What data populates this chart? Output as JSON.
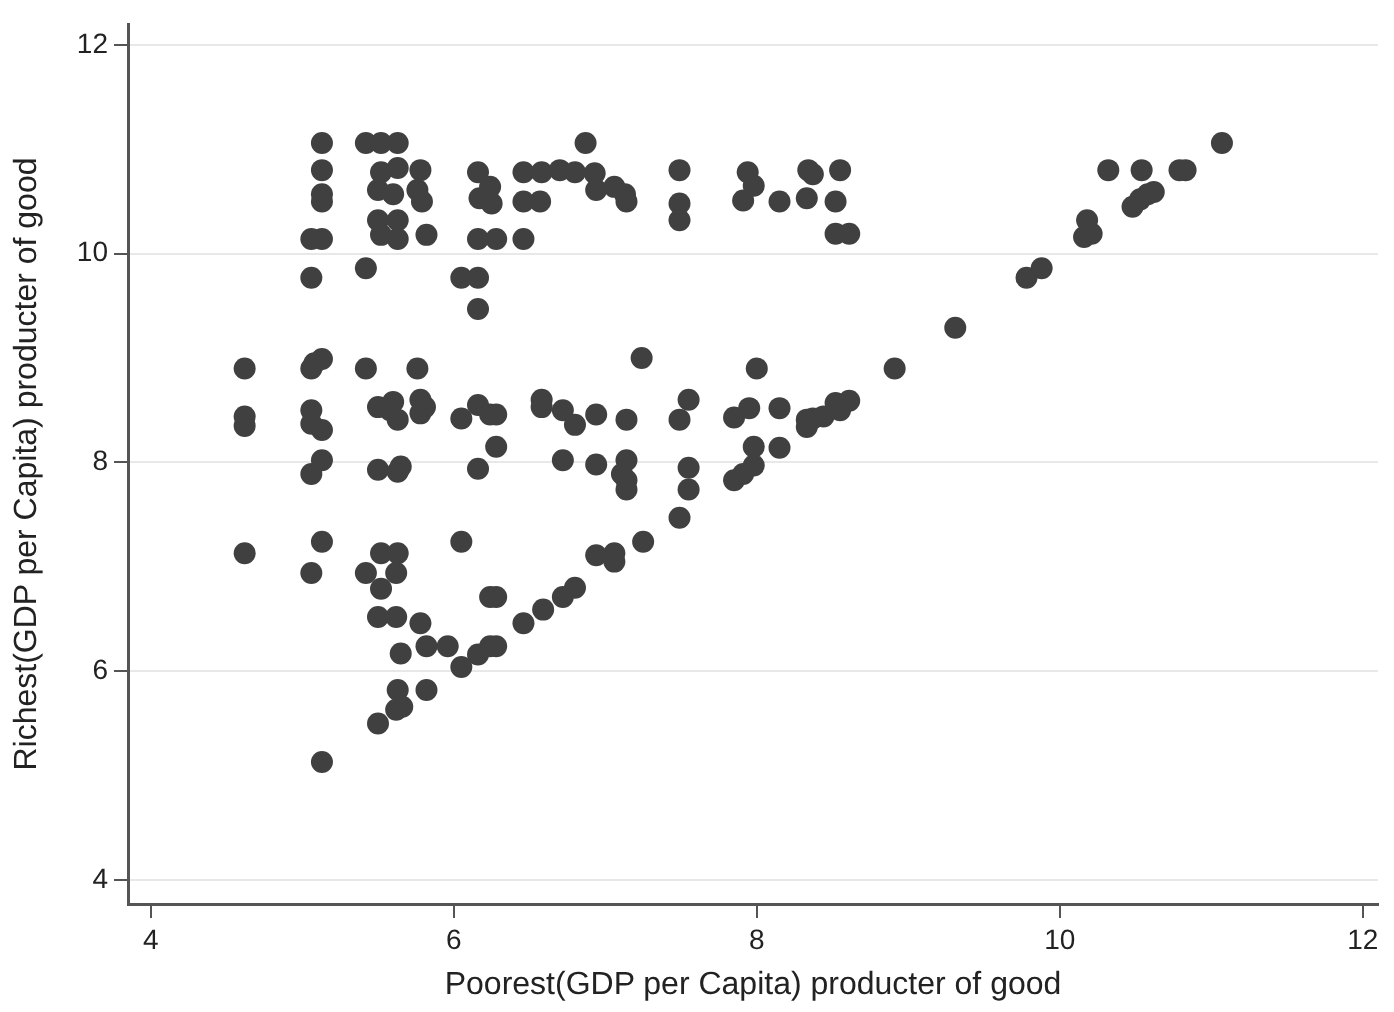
{
  "chart_data": {
    "type": "scatter",
    "xlabel": "Poorest(GDP per Capita) producter of good",
    "ylabel": "Richest(GDP per Capita) producter of good",
    "color": "#404040",
    "marker": "circle",
    "grid": "y",
    "xlim": [
      3.85,
      12.1
    ],
    "ylim": [
      3.77,
      12.2
    ],
    "xticks": [
      4,
      6,
      8,
      10,
      12
    ],
    "yticks": [
      4,
      6,
      8,
      10,
      12
    ],
    "x": [
      4.62,
      4.62,
      4.62,
      4.62,
      5.06,
      5.06,
      5.06,
      5.06,
      5.06,
      5.06,
      5.06,
      5.08,
      5.13,
      5.13,
      5.13,
      5.13,
      5.13,
      5.13,
      5.13,
      5.13,
      5.13,
      5.13,
      5.42,
      5.42,
      5.42,
      5.42,
      5.52,
      5.63,
      5.52,
      5.63,
      5.78,
      5.5,
      5.6,
      5.76,
      5.79,
      5.5,
      5.63,
      5.52,
      5.63,
      5.82,
      5.76,
      5.5,
      5.6,
      5.63,
      5.58,
      5.78,
      5.78,
      5.81,
      5.5,
      5.63,
      5.65,
      5.52,
      5.63,
      5.62,
      5.52,
      5.5,
      5.62,
      5.78,
      5.65,
      5.82,
      5.96,
      5.63,
      5.82,
      5.62,
      5.66,
      5.5,
      6.05,
      6.16,
      6.24,
      6.28,
      6.05,
      6.24,
      6.28,
      6.05,
      6.16,
      6.24,
      6.28,
      6.28,
      6.16,
      6.16,
      6.24,
      6.17,
      6.25,
      6.16,
      6.28,
      6.05,
      6.16,
      6.16,
      6.46,
      6.58,
      6.7,
      6.8,
      6.87,
      6.93,
      6.94,
      7.06,
      7.13,
      7.14,
      6.46,
      6.57,
      6.46,
      7.49,
      7.49,
      7.49,
      7.94,
      7.91,
      7.98,
      8.34,
      8.37,
      8.55,
      8.15,
      8.33,
      8.52,
      8.52,
      8.61,
      10.32,
      10.54,
      10.79,
      10.83,
      11.07,
      10.48,
      10.53,
      10.58,
      10.62,
      10.18,
      10.16,
      10.21,
      9.78,
      9.88,
      9.31,
      8.91,
      8.0,
      8.15,
      7.95,
      8.33,
      8.37,
      8.44,
      8.52,
      8.61,
      8.55,
      8.33,
      8.15,
      7.98,
      7.98,
      7.24,
      6.58,
      6.58,
      6.72,
      6.8,
      6.94,
      7.14,
      7.49,
      7.55,
      7.85,
      6.72,
      6.94,
      7.14,
      7.11,
      7.14,
      7.14,
      7.55,
      7.55,
      7.85,
      7.91,
      7.49,
      7.25,
      6.94,
      7.06,
      7.06,
      6.8,
      6.72,
      6.59,
      6.46
    ],
    "values": [
      8.9,
      8.44,
      8.35,
      7.13,
      10.14,
      9.77,
      8.9,
      8.5,
      8.37,
      7.89,
      6.94,
      8.95,
      11.06,
      10.8,
      10.57,
      10.5,
      10.14,
      8.99,
      8.31,
      8.02,
      7.24,
      5.13,
      11.06,
      9.86,
      8.9,
      6.94,
      11.06,
      11.06,
      10.78,
      10.82,
      10.8,
      10.61,
      10.57,
      10.61,
      10.5,
      10.32,
      10.32,
      10.18,
      10.14,
      10.18,
      8.9,
      8.53,
      8.58,
      8.41,
      8.5,
      8.6,
      8.47,
      8.53,
      7.93,
      7.91,
      7.96,
      7.13,
      7.13,
      6.94,
      6.79,
      6.52,
      6.52,
      6.46,
      6.17,
      6.24,
      6.24,
      5.82,
      5.82,
      5.63,
      5.66,
      5.5,
      6.04,
      6.16,
      6.24,
      6.24,
      7.24,
      6.71,
      6.71,
      8.42,
      8.55,
      8.46,
      8.46,
      8.15,
      7.94,
      10.78,
      10.64,
      10.53,
      10.48,
      10.14,
      10.14,
      9.77,
      9.77,
      9.47,
      10.78,
      10.78,
      10.8,
      10.78,
      11.06,
      10.77,
      10.61,
      10.64,
      10.57,
      10.5,
      10.5,
      10.5,
      10.14,
      10.8,
      10.48,
      10.32,
      10.78,
      10.51,
      10.65,
      10.8,
      10.76,
      10.8,
      10.5,
      10.53,
      10.5,
      10.19,
      10.19,
      10.8,
      10.8,
      10.8,
      10.8,
      11.06,
      10.45,
      10.52,
      10.57,
      10.59,
      10.32,
      10.16,
      10.19,
      9.77,
      9.86,
      9.29,
      8.9,
      8.9,
      8.52,
      8.52,
      8.41,
      8.42,
      8.44,
      8.57,
      8.59,
      8.5,
      8.34,
      8.14,
      8.15,
      7.97,
      9.0,
      8.6,
      8.53,
      8.5,
      8.36,
      8.46,
      8.41,
      8.41,
      8.6,
      8.43,
      8.02,
      7.98,
      8.02,
      7.89,
      7.83,
      7.74,
      7.95,
      7.74,
      7.83,
      7.89,
      7.47,
      7.24,
      7.11,
      7.13,
      7.05,
      6.8,
      6.71,
      6.59,
      6.46
    ]
  }
}
